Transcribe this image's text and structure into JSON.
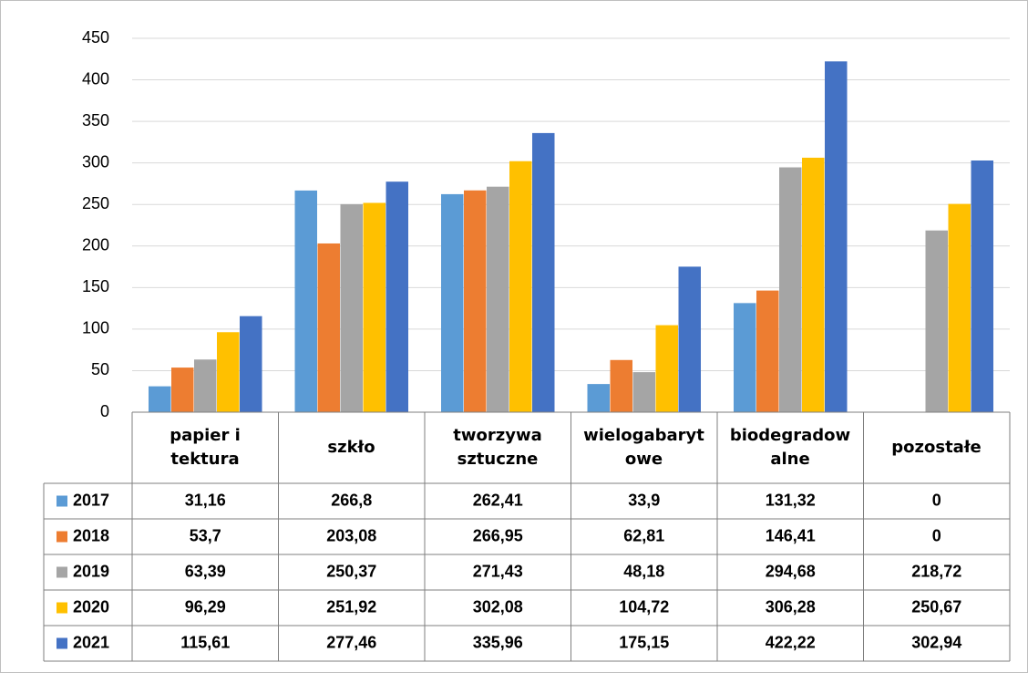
{
  "chart_data": {
    "type": "bar",
    "categories": [
      "papier i tektura",
      "szkło",
      "tworzywa sztuczne",
      "wielogabarytowe",
      "biodegradowalne",
      "pozostałe"
    ],
    "series": [
      {
        "name": "2017",
        "color": "#5b9bd5",
        "values": [
          31.16,
          266.8,
          262.41,
          33.9,
          131.32,
          0
        ],
        "value_labels": [
          "31,16",
          "266,8",
          "262,41",
          "33,9",
          "131,32",
          "0"
        ]
      },
      {
        "name": "2018",
        "color": "#ed7d31",
        "values": [
          53.7,
          203.08,
          266.95,
          62.81,
          146.41,
          0
        ],
        "value_labels": [
          "53,7",
          "203,08",
          "266,95",
          "62,81",
          "146,41",
          "0"
        ]
      },
      {
        "name": "2019",
        "color": "#a5a5a5",
        "values": [
          63.39,
          250.37,
          271.43,
          48.18,
          294.68,
          218.72
        ],
        "value_labels": [
          "63,39",
          "250,37",
          "271,43",
          "48,18",
          "294,68",
          "218,72"
        ]
      },
      {
        "name": "2020",
        "color": "#ffc000",
        "values": [
          96.29,
          251.92,
          302.08,
          104.72,
          306.28,
          250.67
        ],
        "value_labels": [
          "96,29",
          "251,92",
          "302,08",
          "104,72",
          "306,28",
          "250,67"
        ]
      },
      {
        "name": "2021",
        "color": "#4472c4",
        "values": [
          115.61,
          277.46,
          335.96,
          175.15,
          422.22,
          302.94
        ],
        "value_labels": [
          "115,61",
          "277,46",
          "335,96",
          "175,15",
          "422,22",
          "302,94"
        ]
      }
    ],
    "ylim": [
      0,
      450
    ],
    "yticks": [
      0,
      50,
      100,
      150,
      200,
      250,
      300,
      350,
      400,
      450
    ],
    "grid": true
  }
}
